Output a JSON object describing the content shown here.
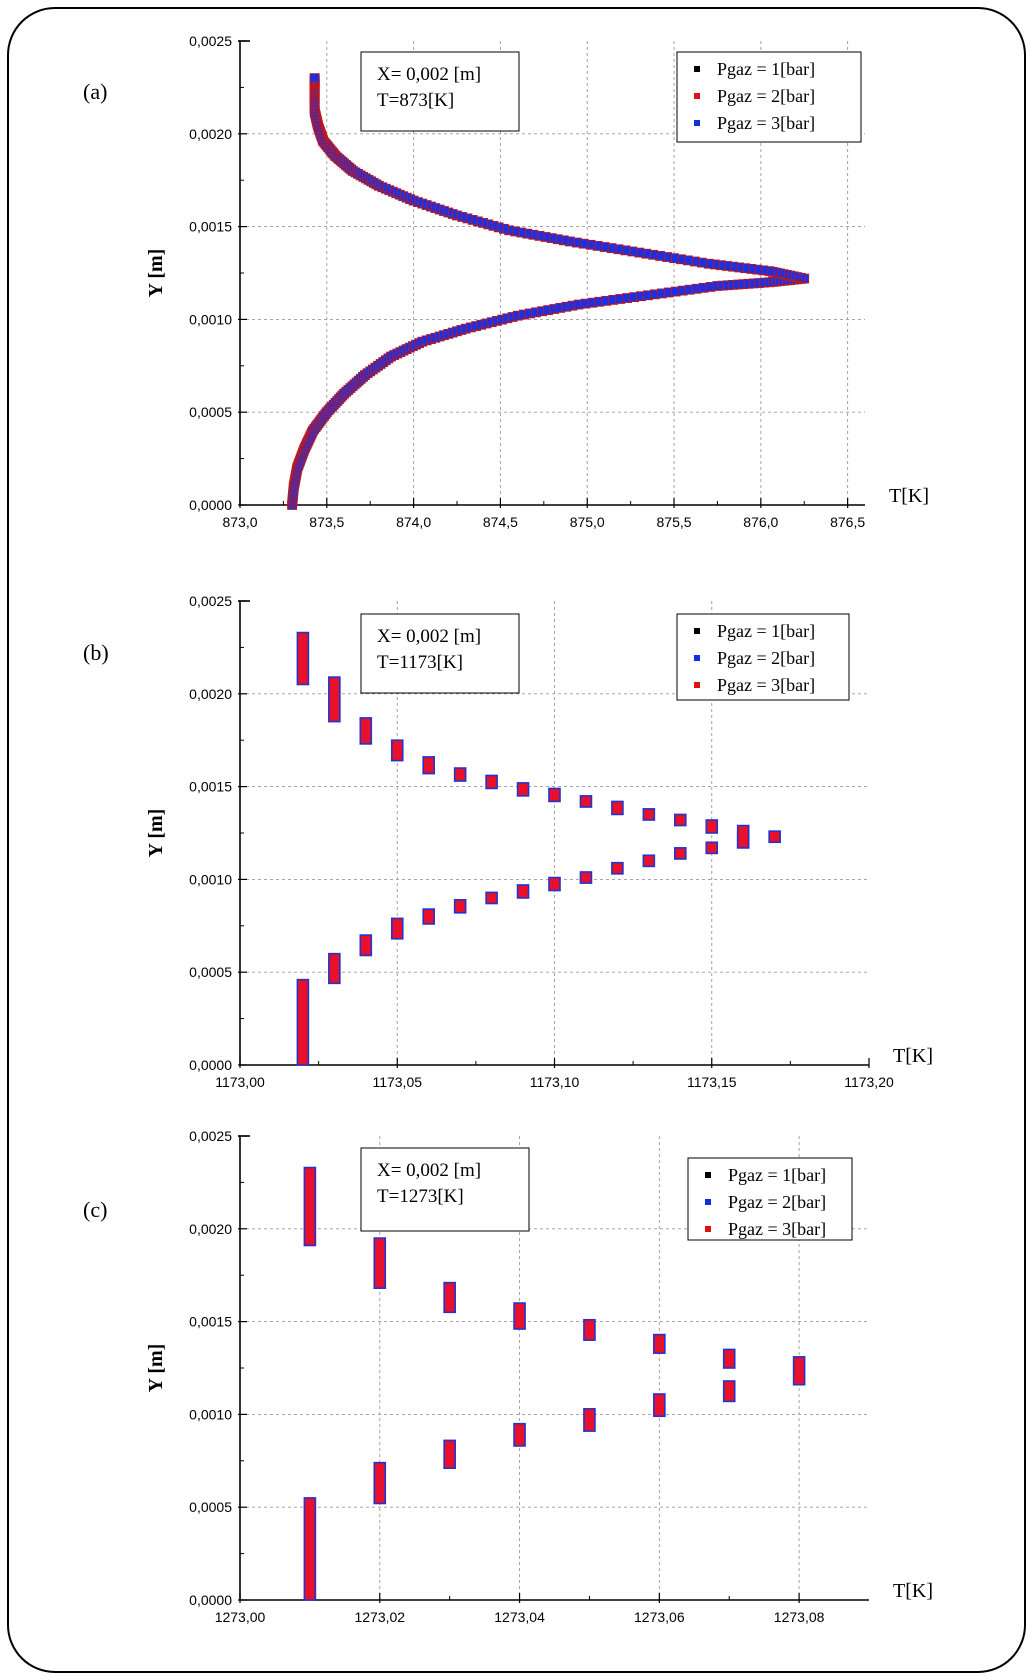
{
  "chart_data": [
    {
      "type": "scatter",
      "panel_label": "(a)",
      "annotation": [
        "X= 0,002 [m]",
        "T=873[K]"
      ],
      "xlabel": "T[K]",
      "ylabel": "Y [m]",
      "xlim": [
        873.0,
        876.6
      ],
      "ylim": [
        0.0,
        0.0025
      ],
      "x_ticks": [
        873.0,
        873.5,
        874.0,
        874.5,
        875.0,
        875.5,
        876.0,
        876.5
      ],
      "x_tick_labels": [
        "873,0",
        "873,5",
        "874,0",
        "874,5",
        "875,0",
        "875,5",
        "876,0",
        "876,5"
      ],
      "y_ticks": [
        0.0,
        0.0005,
        0.001,
        0.0015,
        0.002,
        0.0025
      ],
      "y_tick_labels": [
        "0,0000",
        "0,0005",
        "0,0010",
        "0,0015",
        "0,0020",
        "0,0025"
      ],
      "grid": true,
      "legend_position": "top-right",
      "legend": [
        {
          "label": "Pgaz = 1[bar]",
          "color": "#000000"
        },
        {
          "label": "Pgaz = 2[bar]",
          "color": "#e01010"
        },
        {
          "label": "Pgaz = 3[bar]",
          "color": "#1030e0"
        }
      ],
      "series_note": "three coincident series",
      "curve": {
        "x": [
          873.3,
          873.31,
          873.33,
          873.37,
          873.42,
          873.5,
          873.6,
          873.72,
          873.87,
          874.05,
          874.3,
          874.6,
          874.95,
          875.35,
          875.75,
          876.05,
          876.25,
          876.05,
          875.7,
          875.3,
          874.9,
          874.55,
          874.25,
          874.0,
          873.8,
          873.65,
          873.55,
          873.48,
          873.45,
          873.43,
          873.43,
          873.43,
          873.43
        ],
        "y": [
          0.0,
          0.0001,
          0.0002,
          0.0003,
          0.0004,
          0.0005,
          0.0006,
          0.0007,
          0.0008,
          0.00088,
          0.00095,
          0.00102,
          0.00108,
          0.00113,
          0.00118,
          0.0012,
          0.00122,
          0.00126,
          0.0013,
          0.00136,
          0.00142,
          0.00148,
          0.00156,
          0.00164,
          0.00172,
          0.0018,
          0.00188,
          0.00196,
          0.00204,
          0.00212,
          0.0022,
          0.00226,
          0.0023
        ]
      }
    },
    {
      "type": "scatter",
      "panel_label": "(b)",
      "annotation": [
        "X= 0,002 [m]",
        "T=1173[K]"
      ],
      "xlabel": "T[K]",
      "ylabel": "Y [m]",
      "xlim": [
        1173.0,
        1173.2
      ],
      "ylim": [
        0.0,
        0.0025
      ],
      "x_ticks": [
        1173.0,
        1173.05,
        1173.1,
        1173.15,
        1173.2
      ],
      "x_tick_labels": [
        "1173,00",
        "1173,05",
        "1173,10",
        "1173,15",
        "1173,20"
      ],
      "y_ticks": [
        0.0,
        0.0005,
        0.001,
        0.0015,
        0.002,
        0.0025
      ],
      "y_tick_labels": [
        "0,0000",
        "0,0005",
        "0,0010",
        "0,0015",
        "0,0020",
        "0,0025"
      ],
      "grid": true,
      "legend_position": "top-right",
      "legend": [
        {
          "label": "Pgaz = 1[bar]",
          "color": "#000000"
        },
        {
          "label": "Pgaz = 2[bar]",
          "color": "#1030e0"
        },
        {
          "label": "Pgaz = 3[bar]",
          "color": "#e01010"
        }
      ],
      "series_note": "three coincident series",
      "segments": [
        {
          "x": 1173.02,
          "y0": 0.0,
          "y1": 0.00046
        },
        {
          "x": 1173.03,
          "y0": 0.00044,
          "y1": 0.0006
        },
        {
          "x": 1173.04,
          "y0": 0.00059,
          "y1": 0.0007
        },
        {
          "x": 1173.05,
          "y0": 0.00068,
          "y1": 0.00079
        },
        {
          "x": 1173.06,
          "y0": 0.00076,
          "y1": 0.00084
        },
        {
          "x": 1173.07,
          "y0": 0.00082,
          "y1": 0.00089
        },
        {
          "x": 1173.08,
          "y0": 0.00087,
          "y1": 0.00093
        },
        {
          "x": 1173.09,
          "y0": 0.0009,
          "y1": 0.00097
        },
        {
          "x": 1173.1,
          "y0": 0.00094,
          "y1": 0.00101
        },
        {
          "x": 1173.11,
          "y0": 0.00098,
          "y1": 0.00104
        },
        {
          "x": 1173.12,
          "y0": 0.00103,
          "y1": 0.00109
        },
        {
          "x": 1173.13,
          "y0": 0.00107,
          "y1": 0.00113
        },
        {
          "x": 1173.14,
          "y0": 0.00111,
          "y1": 0.00117
        },
        {
          "x": 1173.15,
          "y0": 0.00114,
          "y1": 0.0012
        },
        {
          "x": 1173.16,
          "y0": 0.00117,
          "y1": 0.00125
        },
        {
          "x": 1173.17,
          "y0": 0.0012,
          "y1": 0.00126
        },
        {
          "x": 1173.16,
          "y0": 0.00117,
          "y1": 0.00129
        },
        {
          "x": 1173.15,
          "y0": 0.00125,
          "y1": 0.00132
        },
        {
          "x": 1173.14,
          "y0": 0.00129,
          "y1": 0.00135
        },
        {
          "x": 1173.13,
          "y0": 0.00132,
          "y1": 0.00138
        },
        {
          "x": 1173.12,
          "y0": 0.00135,
          "y1": 0.00142
        },
        {
          "x": 1173.11,
          "y0": 0.00139,
          "y1": 0.00145
        },
        {
          "x": 1173.1,
          "y0": 0.00142,
          "y1": 0.00149
        },
        {
          "x": 1173.09,
          "y0": 0.00145,
          "y1": 0.00152
        },
        {
          "x": 1173.08,
          "y0": 0.00149,
          "y1": 0.00156
        },
        {
          "x": 1173.07,
          "y0": 0.00153,
          "y1": 0.0016
        },
        {
          "x": 1173.06,
          "y0": 0.00157,
          "y1": 0.00166
        },
        {
          "x": 1173.05,
          "y0": 0.00164,
          "y1": 0.00175
        },
        {
          "x": 1173.04,
          "y0": 0.00173,
          "y1": 0.00187
        },
        {
          "x": 1173.03,
          "y0": 0.00185,
          "y1": 0.00209
        },
        {
          "x": 1173.02,
          "y0": 0.00205,
          "y1": 0.00233
        }
      ]
    },
    {
      "type": "scatter",
      "panel_label": "(c)",
      "annotation": [
        "X= 0,002 [m]",
        "T=1273[K]"
      ],
      "xlabel": "T[K]",
      "ylabel": "Y [m]",
      "xlim": [
        1273.0,
        1273.09
      ],
      "ylim": [
        0.0,
        0.0025
      ],
      "x_ticks": [
        1273.0,
        1273.02,
        1273.04,
        1273.06,
        1273.08
      ],
      "x_tick_labels": [
        "1273,00",
        "1273,02",
        "1273,04",
        "1273,06",
        "1273,08"
      ],
      "y_ticks": [
        0.0,
        0.0005,
        0.001,
        0.0015,
        0.002,
        0.0025
      ],
      "y_tick_labels": [
        "0,0000",
        "0,0005",
        "0,0010",
        "0,0015",
        "0,0020",
        "0,0025"
      ],
      "grid": true,
      "legend_position": "top-right",
      "legend": [
        {
          "label": "Pgaz = 1[bar]",
          "color": "#000000"
        },
        {
          "label": "Pgaz = 2[bar]",
          "color": "#1030e0"
        },
        {
          "label": "Pgaz = 3[bar]",
          "color": "#e01010"
        }
      ],
      "series_note": "three coincident series",
      "segments": [
        {
          "x": 1273.01,
          "y0": 0.0,
          "y1": 0.00055
        },
        {
          "x": 1273.02,
          "y0": 0.00052,
          "y1": 0.00074
        },
        {
          "x": 1273.03,
          "y0": 0.00071,
          "y1": 0.00086
        },
        {
          "x": 1273.04,
          "y0": 0.00083,
          "y1": 0.00095
        },
        {
          "x": 1273.05,
          "y0": 0.00091,
          "y1": 0.00103
        },
        {
          "x": 1273.06,
          "y0": 0.00099,
          "y1": 0.00111
        },
        {
          "x": 1273.07,
          "y0": 0.00107,
          "y1": 0.00118
        },
        {
          "x": 1273.08,
          "y0": 0.00116,
          "y1": 0.00131
        },
        {
          "x": 1273.07,
          "y0": 0.00125,
          "y1": 0.00135
        },
        {
          "x": 1273.06,
          "y0": 0.00133,
          "y1": 0.00143
        },
        {
          "x": 1273.05,
          "y0": 0.0014,
          "y1": 0.00151
        },
        {
          "x": 1273.04,
          "y0": 0.00146,
          "y1": 0.0016
        },
        {
          "x": 1273.03,
          "y0": 0.00155,
          "y1": 0.00171
        },
        {
          "x": 1273.02,
          "y0": 0.00168,
          "y1": 0.00195
        },
        {
          "x": 1273.01,
          "y0": 0.00191,
          "y1": 0.00233
        }
      ]
    }
  ]
}
